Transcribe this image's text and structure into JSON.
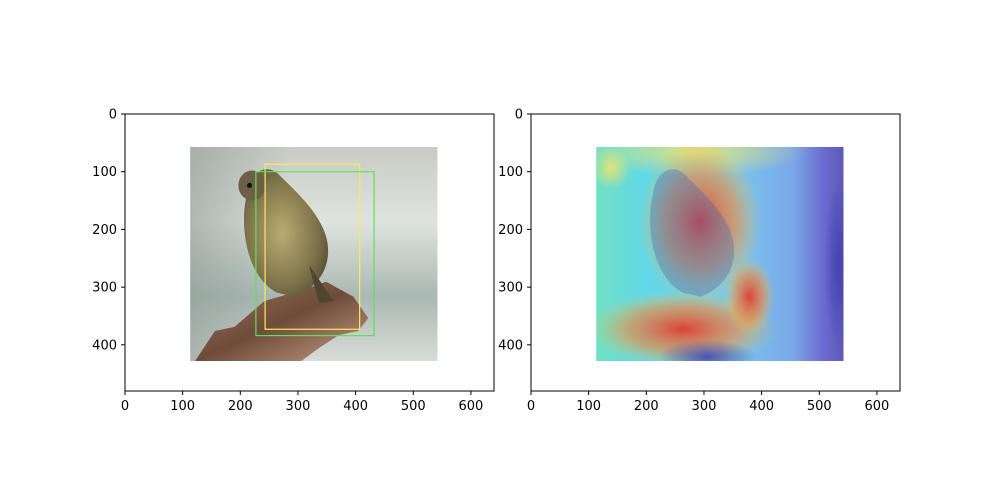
{
  "panels": [
    {
      "id": "original",
      "image_extent": {
        "x": [
          113,
          542
        ],
        "y": [
          57,
          428
        ]
      },
      "boxes": [
        {
          "label": "yellow",
          "color": "#f2ee5a",
          "x0": 243,
          "y0": 87,
          "x1": 407,
          "y1": 373
        },
        {
          "label": "green",
          "color": "#5ee05a",
          "x0": 227,
          "y0": 100,
          "x1": 432,
          "y1": 384
        }
      ]
    },
    {
      "id": "heatmap",
      "image_extent": {
        "x": [
          113,
          542
        ],
        "y": [
          57,
          428
        ]
      },
      "boxes": []
    }
  ],
  "axes": {
    "xlim": [
      0,
      640
    ],
    "ylim": [
      480,
      0
    ],
    "x_ticks": [
      "0",
      "100",
      "200",
      "300",
      "400",
      "500",
      "600"
    ],
    "y_ticks": [
      "0",
      "100",
      "200",
      "300",
      "400"
    ]
  },
  "colors": {
    "background": "#ffffff",
    "frame": "#000000"
  }
}
